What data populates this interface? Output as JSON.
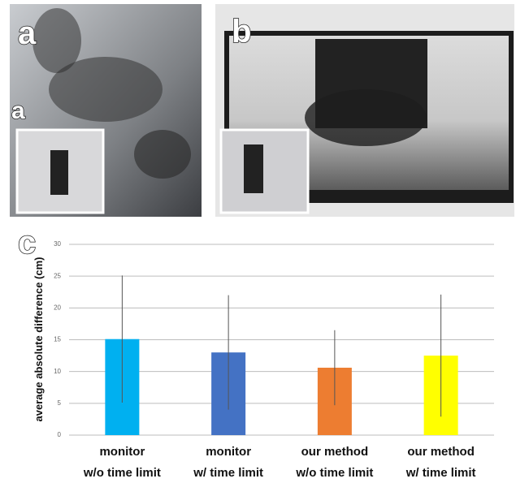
{
  "panel_labels": {
    "a": "a",
    "a_inset": "a",
    "b": "b"
  },
  "chart_data": {
    "type": "bar",
    "panel_label": "c",
    "y_label": "average absolute difference (cm)",
    "categories": [
      [
        "monitor",
        "w/o time limit"
      ],
      [
        "monitor",
        "w/ time limit"
      ],
      [
        "our method",
        "w/o time limit"
      ],
      [
        "our method",
        "w/ time limit"
      ]
    ],
    "values": [
      15.1,
      13.0,
      10.6,
      12.5
    ],
    "errors": [
      10.0,
      9.0,
      5.9,
      9.6
    ],
    "colors": [
      "#00b0f0",
      "#4472c4",
      "#ed7d31",
      "#ffff00"
    ],
    "ylim": [
      0,
      30
    ],
    "yticks": [
      0,
      5,
      10,
      15,
      20,
      25,
      30
    ],
    "grid": true
  }
}
